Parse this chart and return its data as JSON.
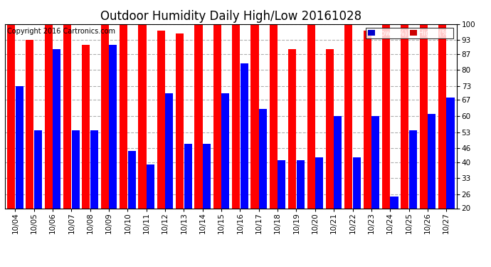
{
  "title": "Outdoor Humidity Daily High/Low 20161028",
  "copyright": "Copyright 2016 Cartronics.com",
  "dates": [
    "10/04",
    "10/05",
    "10/06",
    "10/07",
    "10/08",
    "10/09",
    "10/10",
    "10/11",
    "10/12",
    "10/13",
    "10/14",
    "10/15",
    "10/16",
    "10/17",
    "10/18",
    "10/19",
    "10/20",
    "10/21",
    "10/22",
    "10/23",
    "10/24",
    "10/25",
    "10/26",
    "10/27"
  ],
  "high": [
    100,
    93,
    100,
    100,
    91,
    100,
    100,
    100,
    97,
    96,
    100,
    100,
    100,
    100,
    100,
    89,
    100,
    89,
    100,
    97,
    100,
    100,
    100,
    100
  ],
  "low": [
    73,
    54,
    89,
    54,
    54,
    91,
    45,
    39,
    70,
    48,
    48,
    70,
    83,
    63,
    41,
    41,
    42,
    60,
    42,
    60,
    25,
    54,
    61,
    68
  ],
  "bar_color_high": "#ff0000",
  "bar_color_low": "#0000ff",
  "bg_color": "#ffffff",
  "grid_color": "#b0b0b0",
  "ymin": 20,
  "ymax": 100,
  "yticks": [
    20,
    26,
    33,
    40,
    46,
    53,
    60,
    67,
    73,
    80,
    87,
    93,
    100
  ],
  "legend_low_color": "#0000cc",
  "legend_high_color": "#cc0000",
  "title_fontsize": 12,
  "tick_fontsize": 7.5,
  "copyright_fontsize": 7
}
